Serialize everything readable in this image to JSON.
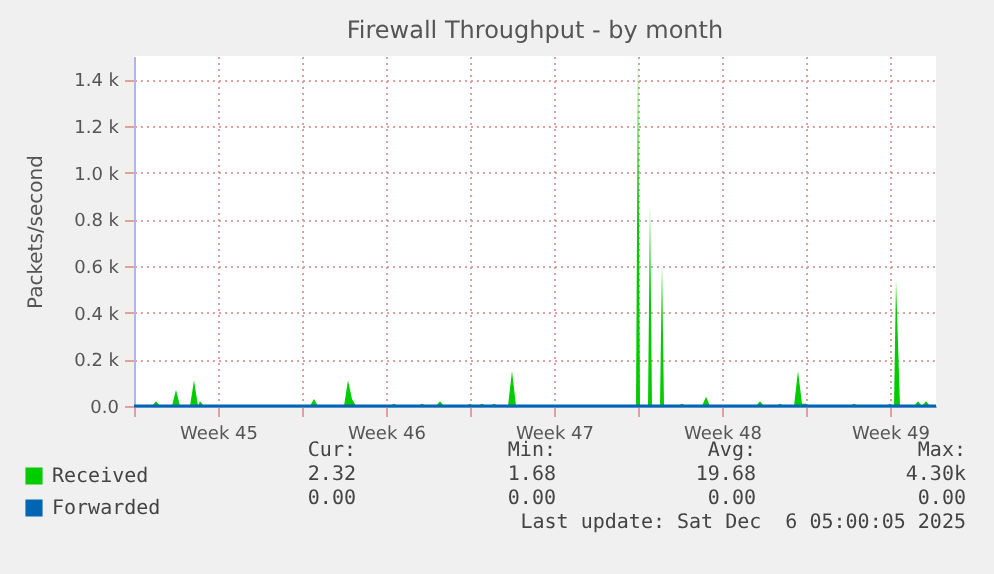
{
  "chart_data": {
    "type": "area",
    "title": "Firewall Throughput - by month",
    "ylabel": "Packets/second",
    "xlim": [
      "2025-11-03T00:00",
      "2025-12-06T10:00"
    ],
    "ylim": [
      0,
      1500
    ],
    "xticks": [
      {
        "value": "2025-11-03T00:00",
        "label": null
      },
      {
        "value": "2025-11-06T12:00",
        "label": "Week 45"
      },
      {
        "value": "2025-11-10T00:00",
        "label": null
      },
      {
        "value": "2025-11-13T12:00",
        "label": "Week 46"
      },
      {
        "value": "2025-11-17T00:00",
        "label": null
      },
      {
        "value": "2025-11-20T12:00",
        "label": "Week 47"
      },
      {
        "value": "2025-11-24T00:00",
        "label": null
      },
      {
        "value": "2025-11-27T12:00",
        "label": "Week 48"
      },
      {
        "value": "2025-12-01T00:00",
        "label": null
      },
      {
        "value": "2025-12-04T12:00",
        "label": "Week 49"
      }
    ],
    "yticks": [
      {
        "value": 0,
        "label": "0.0"
      },
      {
        "value": 200,
        "label": "0.2 k"
      },
      {
        "value": 400,
        "label": "0.4 k"
      },
      {
        "value": 600,
        "label": "0.6 k"
      },
      {
        "value": 800,
        "label": "0.8 k"
      },
      {
        "value": 1000,
        "label": "1.0 k"
      },
      {
        "value": 1200,
        "label": "1.2 k"
      },
      {
        "value": 1400,
        "label": "1.4 k"
      }
    ],
    "grid": true,
    "legend": "bottom",
    "series": [
      {
        "name": "Received",
        "color": "#00cc00",
        "type": "area",
        "x": [
          "2025-11-03T00:00",
          "2025-11-03T18:00",
          "2025-11-03T22:00",
          "2025-11-04T02:00",
          "2025-11-04T14:00",
          "2025-11-04T18:00",
          "2025-11-04T22:00",
          "2025-11-05T08:00",
          "2025-11-05T12:00",
          "2025-11-05T16:00",
          "2025-11-05T18:00",
          "2025-11-05T22:00",
          "2025-11-06T14:00",
          "2025-11-09T18:00",
          "2025-11-10T08:00",
          "2025-11-10T12:00",
          "2025-11-10T16:00",
          "2025-11-11T18:00",
          "2025-11-11T22:00",
          "2025-11-12T02:00",
          "2025-11-12T06:00",
          "2025-11-13T16:00",
          "2025-11-13T20:00",
          "2025-11-14T00:00",
          "2025-11-14T20:00",
          "2025-11-15T00:00",
          "2025-11-15T04:00",
          "2025-11-15T14:00",
          "2025-11-15T18:00",
          "2025-11-15T22:00",
          "2025-11-16T20:00",
          "2025-11-17T00:00",
          "2025-11-17T04:00",
          "2025-11-17T08:00",
          "2025-11-17T12:00",
          "2025-11-17T16:00",
          "2025-11-17T20:00",
          "2025-11-18T00:00",
          "2025-11-18T04:00",
          "2025-11-18T14:00",
          "2025-11-18T18:00",
          "2025-11-18T22:00",
          "2025-11-20T12:00",
          "2025-11-23T22:00",
          "2025-11-24T00:00",
          "2025-11-24T02:00",
          "2025-11-24T10:00",
          "2025-11-24T12:00",
          "2025-11-24T14:00",
          "2025-11-24T22:00",
          "2025-11-25T00:00",
          "2025-11-25T02:00",
          "2025-11-25T16:00",
          "2025-11-25T20:00",
          "2025-11-26T00:00",
          "2025-11-26T16:00",
          "2025-11-26T20:00",
          "2025-11-27T00:00",
          "2025-11-28T22:00",
          "2025-11-29T02:00",
          "2025-11-29T06:00",
          "2025-11-29T18:00",
          "2025-11-29T22:00",
          "2025-11-30T02:00",
          "2025-11-30T12:00",
          "2025-11-30T16:00",
          "2025-11-30T20:00",
          "2025-12-01T00:00",
          "2025-12-01T04:00",
          "2025-12-02T20:00",
          "2025-12-03T00:00",
          "2025-12-03T04:00",
          "2025-12-04T08:00",
          "2025-12-04T12:00",
          "2025-12-04T16:00",
          "2025-12-04T18:00",
          "2025-12-04T22:00",
          "2025-12-05T12:00",
          "2025-12-05T16:00",
          "2025-12-05T20:00",
          "2025-12-06T00:00",
          "2025-12-06T04:00",
          "2025-12-06T10:00"
        ],
        "values": [
          0,
          0,
          20,
          0,
          0,
          70,
          0,
          0,
          110,
          0,
          20,
          0,
          0,
          0,
          0,
          30,
          0,
          0,
          110,
          30,
          0,
          0,
          10,
          0,
          0,
          10,
          0,
          0,
          20,
          0,
          0,
          10,
          0,
          0,
          10,
          0,
          0,
          10,
          0,
          0,
          150,
          0,
          0,
          0,
          1500,
          0,
          0,
          860,
          0,
          0,
          610,
          0,
          0,
          10,
          0,
          0,
          40,
          0,
          0,
          20,
          0,
          0,
          10,
          0,
          0,
          150,
          10,
          10,
          0,
          0,
          10,
          0,
          0,
          10,
          0,
          540,
          0,
          0,
          20,
          0,
          20,
          0,
          0
        ]
      },
      {
        "name": "Forwarded",
        "color": "#0066b3",
        "type": "line",
        "x": [
          "2025-11-03T00:00",
          "2025-12-06T10:00"
        ],
        "values": [
          0,
          0
        ]
      }
    ],
    "annotations": [
      "Cur:",
      "Min:",
      "Avg:",
      "Max:",
      "2.32",
      "1.68",
      "19.68",
      "4.30k",
      "0.00",
      "0.00",
      "0.00",
      "0.00",
      "Last update: Sat Dec  6 05:00:05 2025"
    ]
  }
}
